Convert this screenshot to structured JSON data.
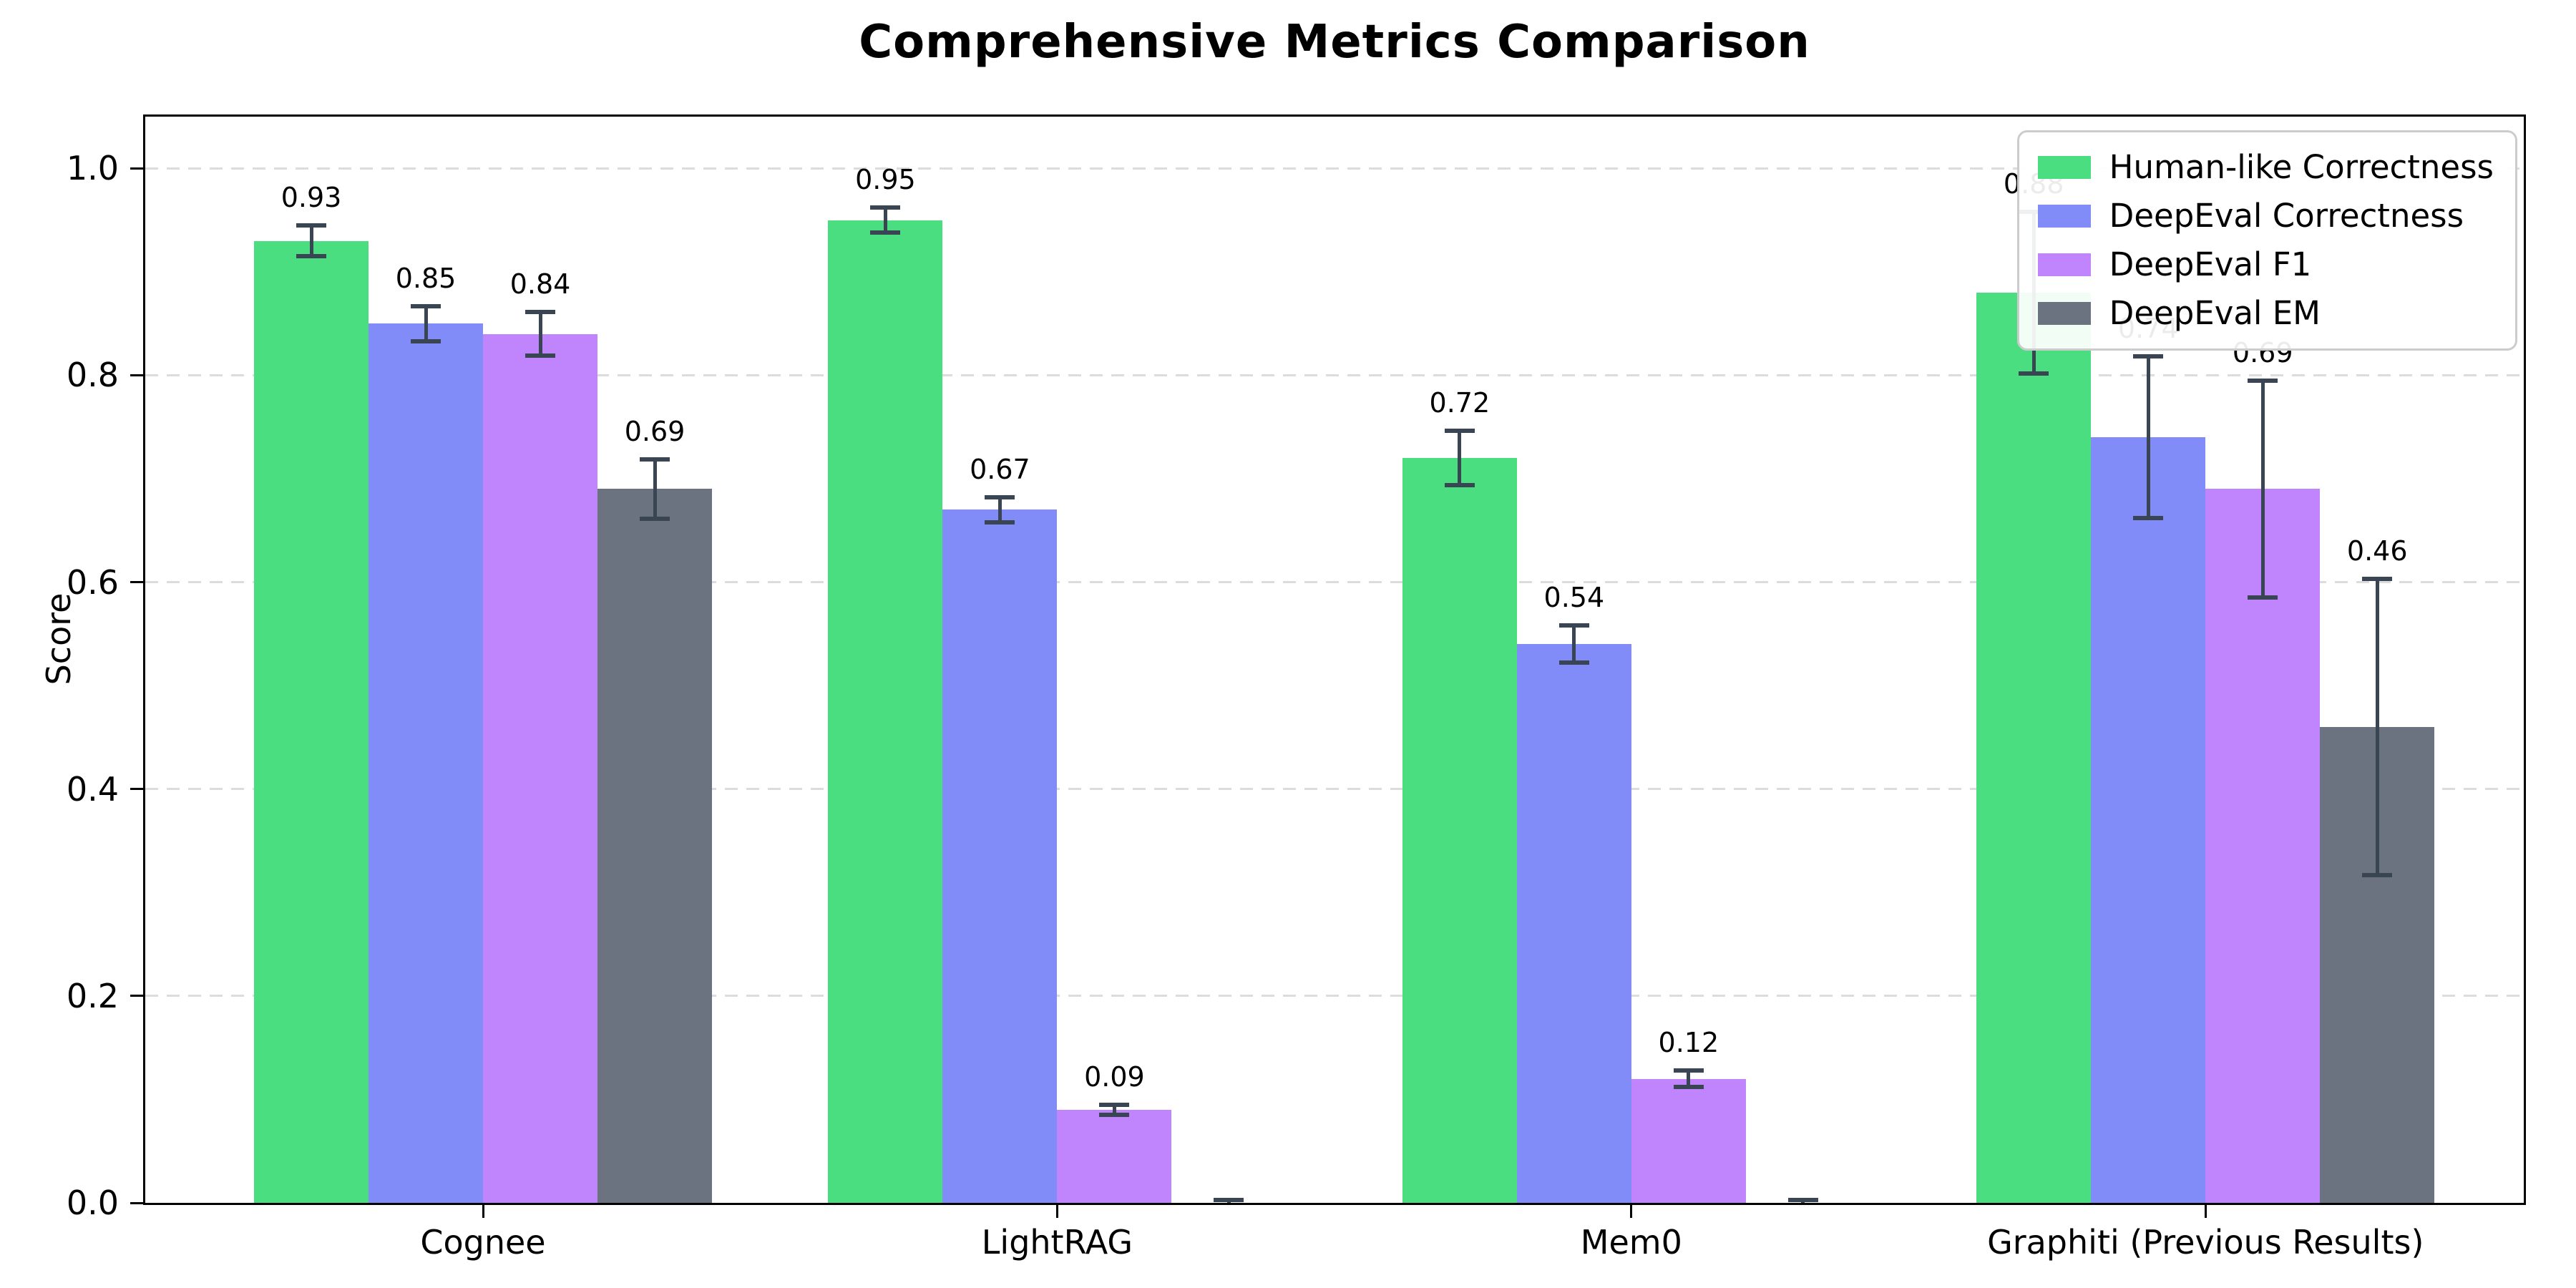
{
  "figure": {
    "title": "Comprehensive Metrics Comparison"
  },
  "chart_data": {
    "type": "bar",
    "title": "Comprehensive Metrics Comparison",
    "xlabel": "",
    "ylabel": "Score",
    "categories": [
      "Cognee",
      "LightRAG",
      "Mem0",
      "Graphiti (Previous Results)"
    ],
    "series": [
      {
        "name": "Human-like Correctness",
        "color": "#4ade80",
        "values": [
          0.93,
          0.95,
          0.72,
          0.88
        ],
        "errors": [
          0.015,
          0.012,
          0.026,
          0.078
        ],
        "labels": [
          "0.93",
          "0.95",
          "0.72",
          "0.88"
        ]
      },
      {
        "name": "DeepEval Correctness",
        "color": "#818cf8",
        "values": [
          0.85,
          0.67,
          0.54,
          0.74
        ],
        "errors": [
          0.017,
          0.012,
          0.018,
          0.078
        ],
        "labels": [
          "0.85",
          "0.67",
          "0.54",
          "0.74"
        ]
      },
      {
        "name": "DeepEval F1",
        "color": "#c084fc",
        "values": [
          0.84,
          0.09,
          0.12,
          0.69
        ],
        "errors": [
          0.021,
          0.005,
          0.008,
          0.105
        ],
        "labels": [
          "0.84",
          "0.09",
          "0.12",
          "0.69"
        ]
      },
      {
        "name": "DeepEval EM",
        "color": "#6b7280",
        "values": [
          0.69,
          0.0,
          0.0,
          0.46
        ],
        "errors": [
          0.029,
          0.003,
          0.003,
          0.143
        ],
        "labels": [
          "0.69",
          "",
          "",
          "0.46"
        ]
      }
    ],
    "yticks": [
      "0.0",
      "0.2",
      "0.4",
      "0.6",
      "0.8",
      "1.0"
    ],
    "ytick_values": [
      0.0,
      0.2,
      0.4,
      0.6,
      0.8,
      1.0
    ],
    "ylim": [
      0,
      1.05
    ],
    "grid": "horizontal-dashed",
    "gridline_values": [
      0.2,
      0.4,
      0.6,
      0.8,
      1.0
    ],
    "legend_position": "upper-right",
    "error_bar_color": "#3a4554",
    "axis_color": "#000000",
    "gridline_color": "#dcdcdc",
    "background": "#ffffff"
  }
}
